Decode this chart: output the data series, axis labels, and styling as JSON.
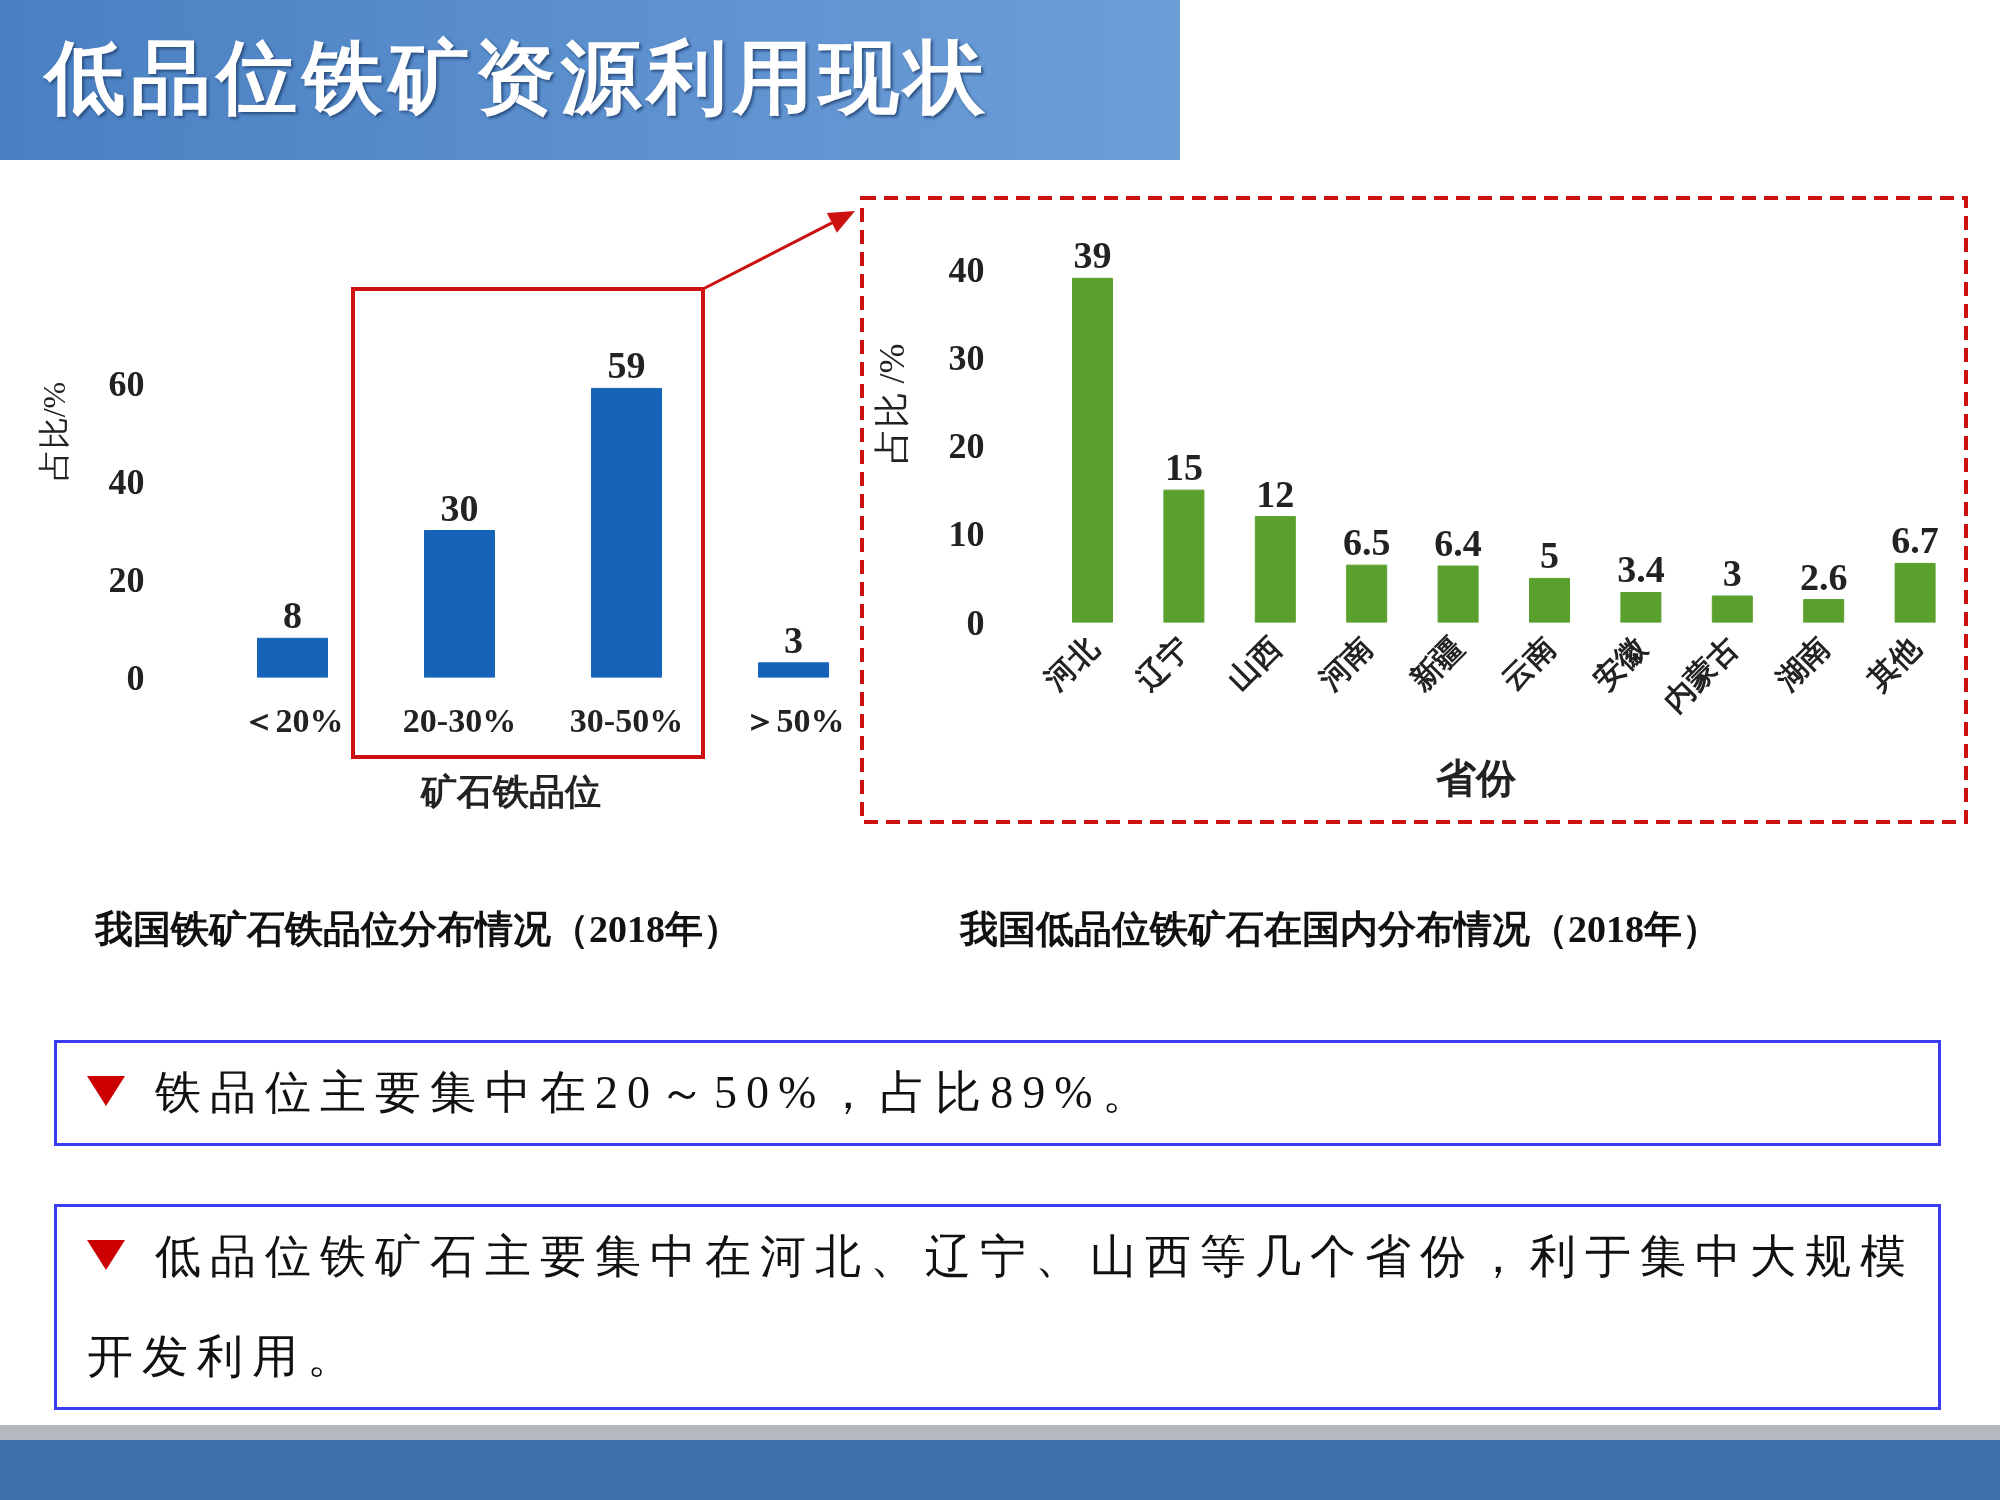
{
  "chart_data": [
    {
      "type": "bar",
      "title": "低品位铁矿资源利用现状",
      "categories": [
        "＜20%",
        "20-30%",
        "30-50%",
        "＞50%"
      ],
      "values": [
        8,
        30,
        59,
        3
      ],
      "color": "#1763b8",
      "xlabel": "矿石铁品位",
      "ylabel": "占比/%",
      "ylim": [
        0,
        60
      ],
      "yticks": [
        0,
        20,
        40,
        60
      ],
      "grid": false,
      "data_labels": true,
      "annotations": [
        "我国铁矿石铁品位分布情况（2018年）",
        "铁品位主要集中在20～50%，占比89%。"
      ]
    },
    {
      "type": "bar",
      "categories": [
        "河北",
        "辽宁",
        "山西",
        "河南",
        "新疆",
        "云南",
        "安徽",
        "内蒙古",
        "湖南",
        "其他"
      ],
      "values": [
        39,
        15,
        12,
        6.5,
        6.4,
        5,
        3.4,
        3,
        2.6,
        6.7
      ],
      "color": "#5aa02c",
      "xlabel": "省份",
      "ylabel": "占比 /%",
      "ylim": [
        0,
        40
      ],
      "yticks": [
        0,
        10,
        20,
        30,
        40
      ],
      "grid": false,
      "data_labels": true,
      "annotations": [
        "我国低品位铁矿石在国内分布情况（2018年）",
        "低品位铁矿石主要集中在河北、辽宁、山西等几个省份，利于集中大规模开发利用。"
      ]
    }
  ]
}
